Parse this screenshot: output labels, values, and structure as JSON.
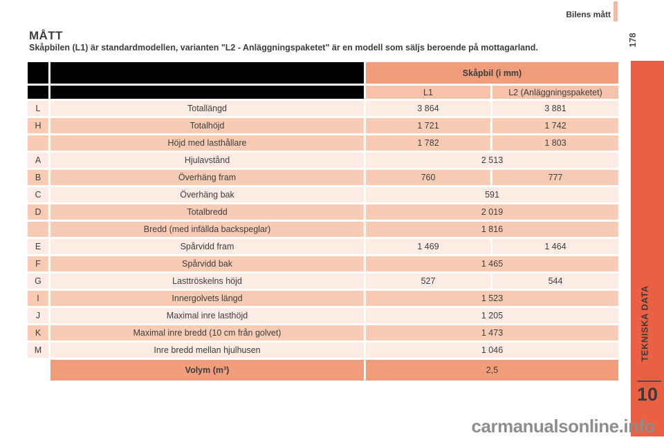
{
  "page": {
    "header_label": "Bilens mått",
    "page_number": "178",
    "title": "MÅTT",
    "subtitle": "Skåpbilen (L1) är standardmodellen, varianten \"L2 - Anläggningspaketet\" är en modell som säljs beroende på mottagarland.",
    "watermark": "carmanualsonline.info"
  },
  "sidebar": {
    "section_label": "TEKNISKA DATA",
    "chapter_number": "10"
  },
  "table": {
    "header": {
      "group": "Skåpbil (i mm)",
      "col_l1": "L1",
      "col_l2": "L2 (Anläggningspaketet)"
    },
    "rows": [
      {
        "letter": "L",
        "label": "Totallängd",
        "l1": "3 864",
        "l2": "3 881",
        "merged": false,
        "tone": "light"
      },
      {
        "letter": "H",
        "label": "Totalhöjd",
        "l1": "1 721",
        "l2": "1 742",
        "merged": false,
        "tone": "salmon"
      },
      {
        "letter": "",
        "label": "Höjd med lasthållare",
        "l1": "1 782",
        "l2": "1 803",
        "merged": false,
        "tone": "salmon"
      },
      {
        "letter": "A",
        "label": "Hjulavstånd",
        "value": "2 513",
        "merged": true,
        "tone": "light"
      },
      {
        "letter": "B",
        "label": "Överhäng fram",
        "l1": "760",
        "l2": "777",
        "merged": false,
        "tone": "salmon"
      },
      {
        "letter": "C",
        "label": "Överhäng bak",
        "value": "591",
        "merged": true,
        "tone": "light"
      },
      {
        "letter": "D",
        "label": "Totalbredd",
        "value": "2 019",
        "merged": true,
        "tone": "salmon"
      },
      {
        "letter": "",
        "label": "Bredd (med infällda backspeglar)",
        "value": "1 816",
        "merged": true,
        "tone": "salmon"
      },
      {
        "letter": "E",
        "label": "Spårvidd fram",
        "l1": "1 469",
        "l2": "1 464",
        "merged": false,
        "tone": "light"
      },
      {
        "letter": "F",
        "label": "Spårvidd bak",
        "value": "1 465",
        "merged": true,
        "tone": "salmon"
      },
      {
        "letter": "G",
        "label": "Lasttröskelns höjd",
        "l1": "527",
        "l2": "544",
        "merged": false,
        "tone": "light"
      },
      {
        "letter": "I",
        "label": "Innergolvets längd",
        "value": "1 523",
        "merged": true,
        "tone": "salmon"
      },
      {
        "letter": "J",
        "label": "Maximal inre lasthöjd",
        "value": "1 205",
        "merged": true,
        "tone": "light"
      },
      {
        "letter": "K",
        "label": "Maximal inre bredd (10 cm från golvet)",
        "value": "1 473",
        "merged": true,
        "tone": "salmon"
      },
      {
        "letter": "M",
        "label": "Inre bredd mellan hjulhusen",
        "value": "1 046",
        "merged": true,
        "tone": "light"
      },
      {
        "letter": "",
        "label": "Volym (m³)",
        "value": "2,5",
        "merged": true,
        "tone": "dark",
        "bold": true,
        "empty_letter": true
      }
    ]
  },
  "colors": {
    "text": "#3d3d3f",
    "group_header_bg": "#ef9d7b",
    "sub_header_bg": "#f6c3aa",
    "row_light_bg": "#fdece3",
    "row_salmon_bg": "#f8ccb4",
    "row_dark_bg": "#ef9d7b",
    "side_band": "#eb6043",
    "accent_bar": "#f5b79f",
    "blacked_out_area": "#000000",
    "watermark_gray": "#8d8d8d"
  }
}
